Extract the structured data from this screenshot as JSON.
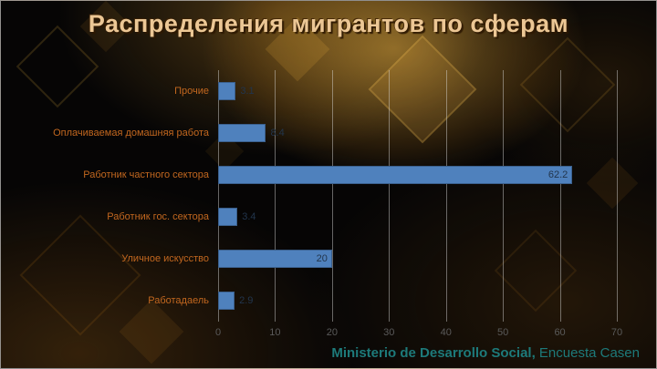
{
  "slide": {
    "title": "Распределения мигрантов по сферам",
    "footer": {
      "source_bold": "Ministerio de Desarrollo Social,",
      "source_regular": " Encuesta Casen"
    }
  },
  "chart_data": {
    "type": "bar",
    "orientation": "horizontal",
    "title": "Распределения мигрантов по сферам",
    "categories": [
      "Прочие",
      "Оплачиваемая домашняя работа",
      "Работник частного сектора",
      "Работник гос. сектора",
      "Уличное искусство",
      "Работадаель"
    ],
    "values": [
      3.1,
      8.4,
      62.2,
      3.4,
      20,
      2.9
    ],
    "data_labels": [
      "3.1",
      "8.4",
      "62.2",
      "3.4",
      "20",
      "2.9"
    ],
    "x_ticks": [
      0,
      10,
      20,
      30,
      40,
      50,
      60,
      70
    ],
    "xlim": [
      0,
      70
    ],
    "grid": true,
    "legend": false,
    "bar_color": "#4F81BD",
    "category_label_color": "#C2671F",
    "source": "Ministerio de Desarrollo Social, Encuesta Casen"
  }
}
